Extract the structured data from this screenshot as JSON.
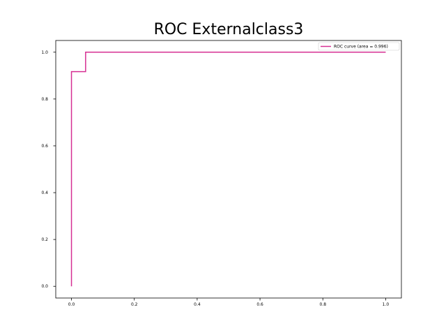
{
  "chart_data": {
    "type": "line",
    "title": "ROC Externalclass3",
    "xlabel": "",
    "ylabel": "",
    "xlim": [
      -0.05,
      1.05
    ],
    "ylim": [
      -0.05,
      1.05
    ],
    "x_ticks": [
      0.0,
      0.2,
      0.4,
      0.6,
      0.8,
      1.0
    ],
    "x_tick_labels": [
      "0.0",
      "0.2",
      "0.4",
      "0.6",
      "0.8",
      "1.0"
    ],
    "y_ticks": [
      0.0,
      0.2,
      0.4,
      0.6,
      0.8,
      1.0
    ],
    "y_tick_labels": [
      "0.0",
      "0.2",
      "0.4",
      "0.6",
      "0.8",
      "1.0"
    ],
    "grid": false,
    "legend_position": "top-right",
    "series": [
      {
        "name": "ROC curve (area = 0.996)",
        "color": "#d62f93",
        "x": [
          0.0,
          0.0,
          0.045,
          0.045,
          1.0
        ],
        "y": [
          0.0,
          0.917,
          0.917,
          1.0,
          1.0
        ]
      }
    ]
  }
}
